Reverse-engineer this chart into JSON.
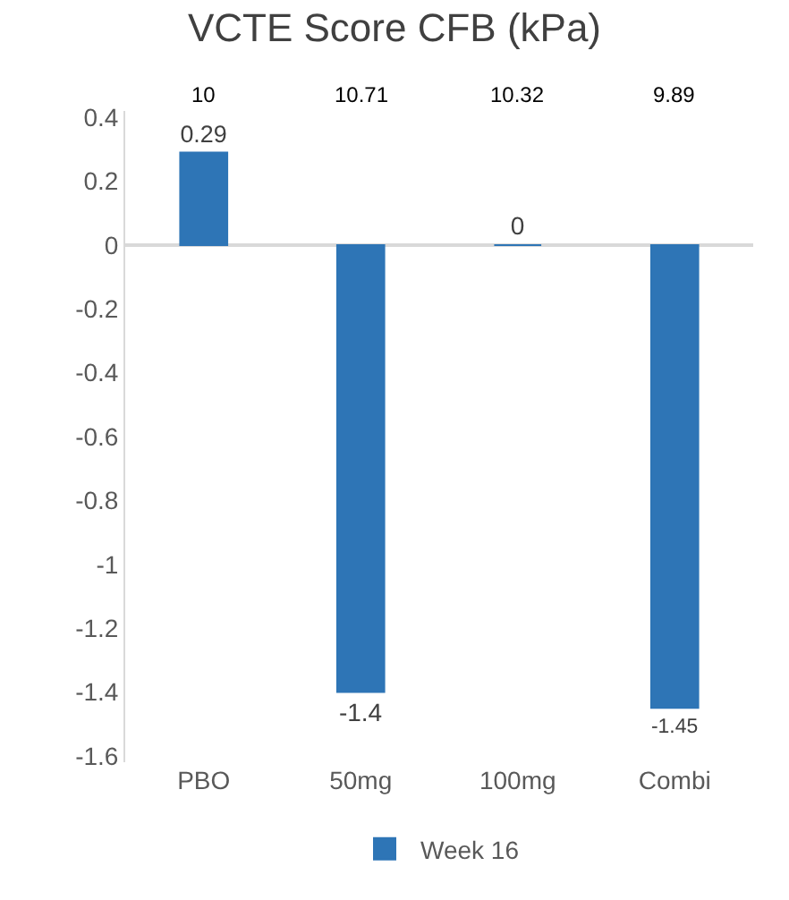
{
  "chart_data": {
    "type": "bar",
    "title": "VCTE Score CFB (kPa)",
    "categories": [
      "PBO",
      "50mg",
      "100mg",
      "Combi"
    ],
    "series": [
      {
        "name": "Week 16",
        "color": "#2e75b6",
        "values": [
          0.29,
          -1.4,
          0,
          -1.45
        ]
      }
    ],
    "data_labels": true,
    "annotations": [
      "10",
      "10.71",
      "10.32",
      "9.89"
    ],
    "ylim": [
      -1.62,
      0.42
    ],
    "yticks": [
      0.4,
      0.2,
      0,
      -0.2,
      -0.4,
      -0.6,
      -0.8,
      -1,
      -1.2,
      -1.4,
      -1.6
    ],
    "ref_lines": [
      {
        "axis": "y",
        "value": 0,
        "color": "#d9d9d9"
      }
    ],
    "grid": false,
    "legend": "bottom"
  }
}
